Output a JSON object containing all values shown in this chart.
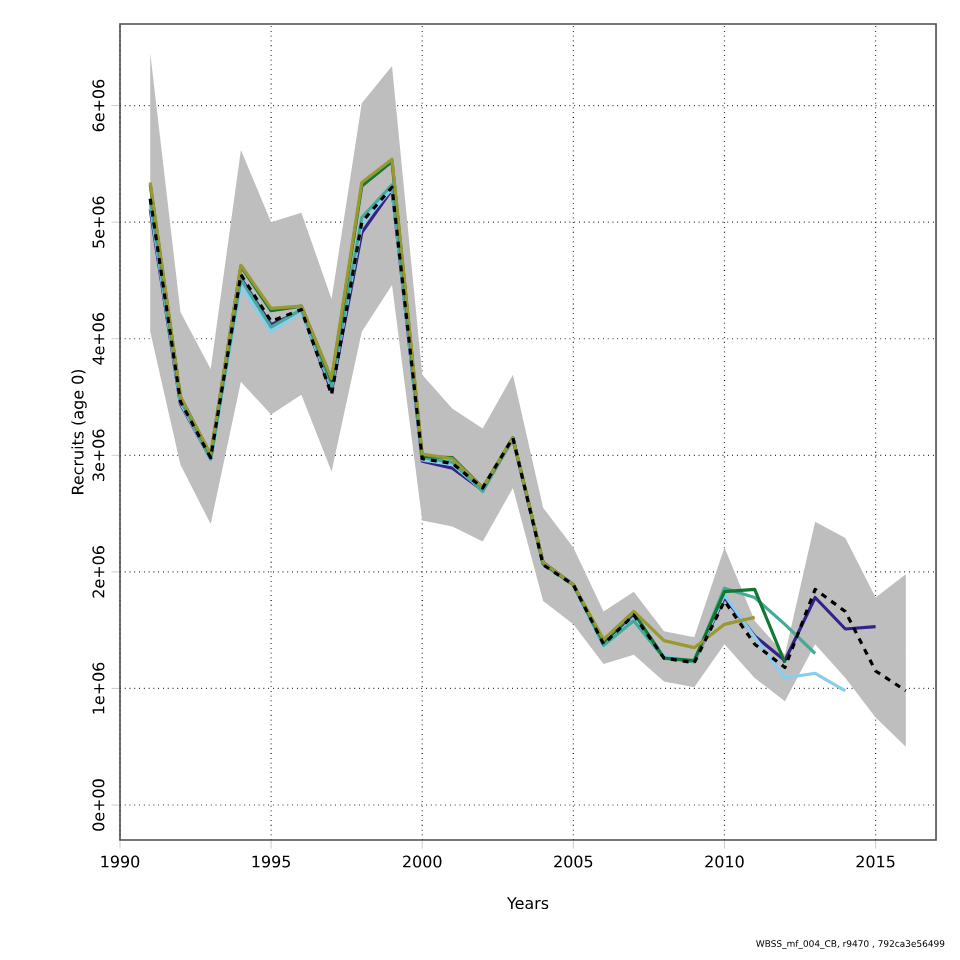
{
  "chart_data": {
    "type": "line",
    "xlabel": "Years",
    "ylabel": "Recruits (age 0)",
    "x": [
      1991,
      1992,
      1993,
      1994,
      1995,
      1996,
      1997,
      1998,
      1999,
      2000,
      2001,
      2002,
      2003,
      2004,
      2005,
      2006,
      2007,
      2008,
      2009,
      2010,
      2011,
      2012,
      2013,
      2014,
      2015,
      2016
    ],
    "series": [
      {
        "color": "#000000",
        "line_style": "dashed",
        "values": [
          5200000,
          3460000,
          2980000,
          4550000,
          4150000,
          4250000,
          3520000,
          5000000,
          5300000,
          2970000,
          2930000,
          2720000,
          3150000,
          2060000,
          1890000,
          1380000,
          1630000,
          1260000,
          1220000,
          1750000,
          1380000,
          1180000,
          1850000,
          1660000,
          1150000,
          980000
        ],
        "lower": [
          4060000,
          2920000,
          2410000,
          3630000,
          3350000,
          3520000,
          2860000,
          4060000,
          4460000,
          2440000,
          2390000,
          2260000,
          2720000,
          1750000,
          1550000,
          1210000,
          1290000,
          1060000,
          1010000,
          1380000,
          1090000,
          890000,
          1380000,
          1090000,
          750000,
          500000
        ],
        "upper": [
          6450000,
          4230000,
          3740000,
          5620000,
          5000000,
          5080000,
          4340000,
          6020000,
          6340000,
          3690000,
          3400000,
          3230000,
          3690000,
          2550000,
          2210000,
          1660000,
          1830000,
          1490000,
          1440000,
          2210000,
          1580000,
          1290000,
          2430000,
          2290000,
          1780000,
          1980000
        ]
      },
      {
        "color": "#332288",
        "values": [
          5110000,
          3440000,
          2970000,
          4520000,
          4120000,
          4240000,
          3550000,
          4910000,
          5280000,
          2950000,
          2890000,
          2700000,
          3140000,
          2080000,
          1890000,
          1380000,
          1630000,
          1270000,
          1230000,
          1780000,
          1450000,
          1240000,
          1780000,
          1510000,
          1530000,
          null
        ]
      },
      {
        "color": "#88ccee",
        "values": [
          5150000,
          3450000,
          2970000,
          4450000,
          4060000,
          4230000,
          3580000,
          4980000,
          5290000,
          2960000,
          2920000,
          2700000,
          3140000,
          2060000,
          1890000,
          1360000,
          1600000,
          1280000,
          1230000,
          1800000,
          1440000,
          1090000,
          1130000,
          980000,
          null,
          null
        ]
      },
      {
        "color": "#44aa99",
        "values": [
          5200000,
          3470000,
          2970000,
          4510000,
          4100000,
          4250000,
          3600000,
          5040000,
          5320000,
          2980000,
          2940000,
          2690000,
          3150000,
          2070000,
          1890000,
          1370000,
          1580000,
          1260000,
          1230000,
          1860000,
          1780000,
          1550000,
          1300000,
          null,
          null,
          null
        ]
      },
      {
        "color": "#117733",
        "values": [
          5320000,
          3500000,
          3000000,
          4620000,
          4240000,
          4280000,
          3640000,
          5310000,
          5520000,
          2990000,
          2980000,
          2720000,
          3150000,
          2070000,
          1890000,
          1400000,
          1650000,
          1260000,
          1240000,
          1830000,
          1850000,
          1220000,
          null,
          null,
          null,
          null
        ]
      },
      {
        "color": "#999933",
        "values": [
          5340000,
          3500000,
          3010000,
          4630000,
          4260000,
          4280000,
          3660000,
          5340000,
          5540000,
          3010000,
          2970000,
          2720000,
          3150000,
          2080000,
          1890000,
          1420000,
          1660000,
          1410000,
          1350000,
          1550000,
          1610000,
          null,
          null,
          null,
          null,
          null
        ]
      }
    ],
    "xlim": [
      1990,
      2017
    ],
    "ylim": [
      -300000,
      6700000
    ],
    "xticks": [
      1990,
      1995,
      2000,
      2005,
      2010,
      2015
    ],
    "yticks": [
      {
        "value": 0,
        "label": "0e+00"
      },
      {
        "value": 1000000,
        "label": "1e+06"
      },
      {
        "value": 2000000,
        "label": "2e+06"
      },
      {
        "value": 3000000,
        "label": "3e+06"
      },
      {
        "value": 4000000,
        "label": "4e+06"
      },
      {
        "value": 5000000,
        "label": "5e+06"
      },
      {
        "value": 6000000,
        "label": "6e+06"
      }
    ],
    "grid": true,
    "annotations": [
      "WBSS_mf_004_CB, r9470 , 792ca3e56499"
    ]
  }
}
